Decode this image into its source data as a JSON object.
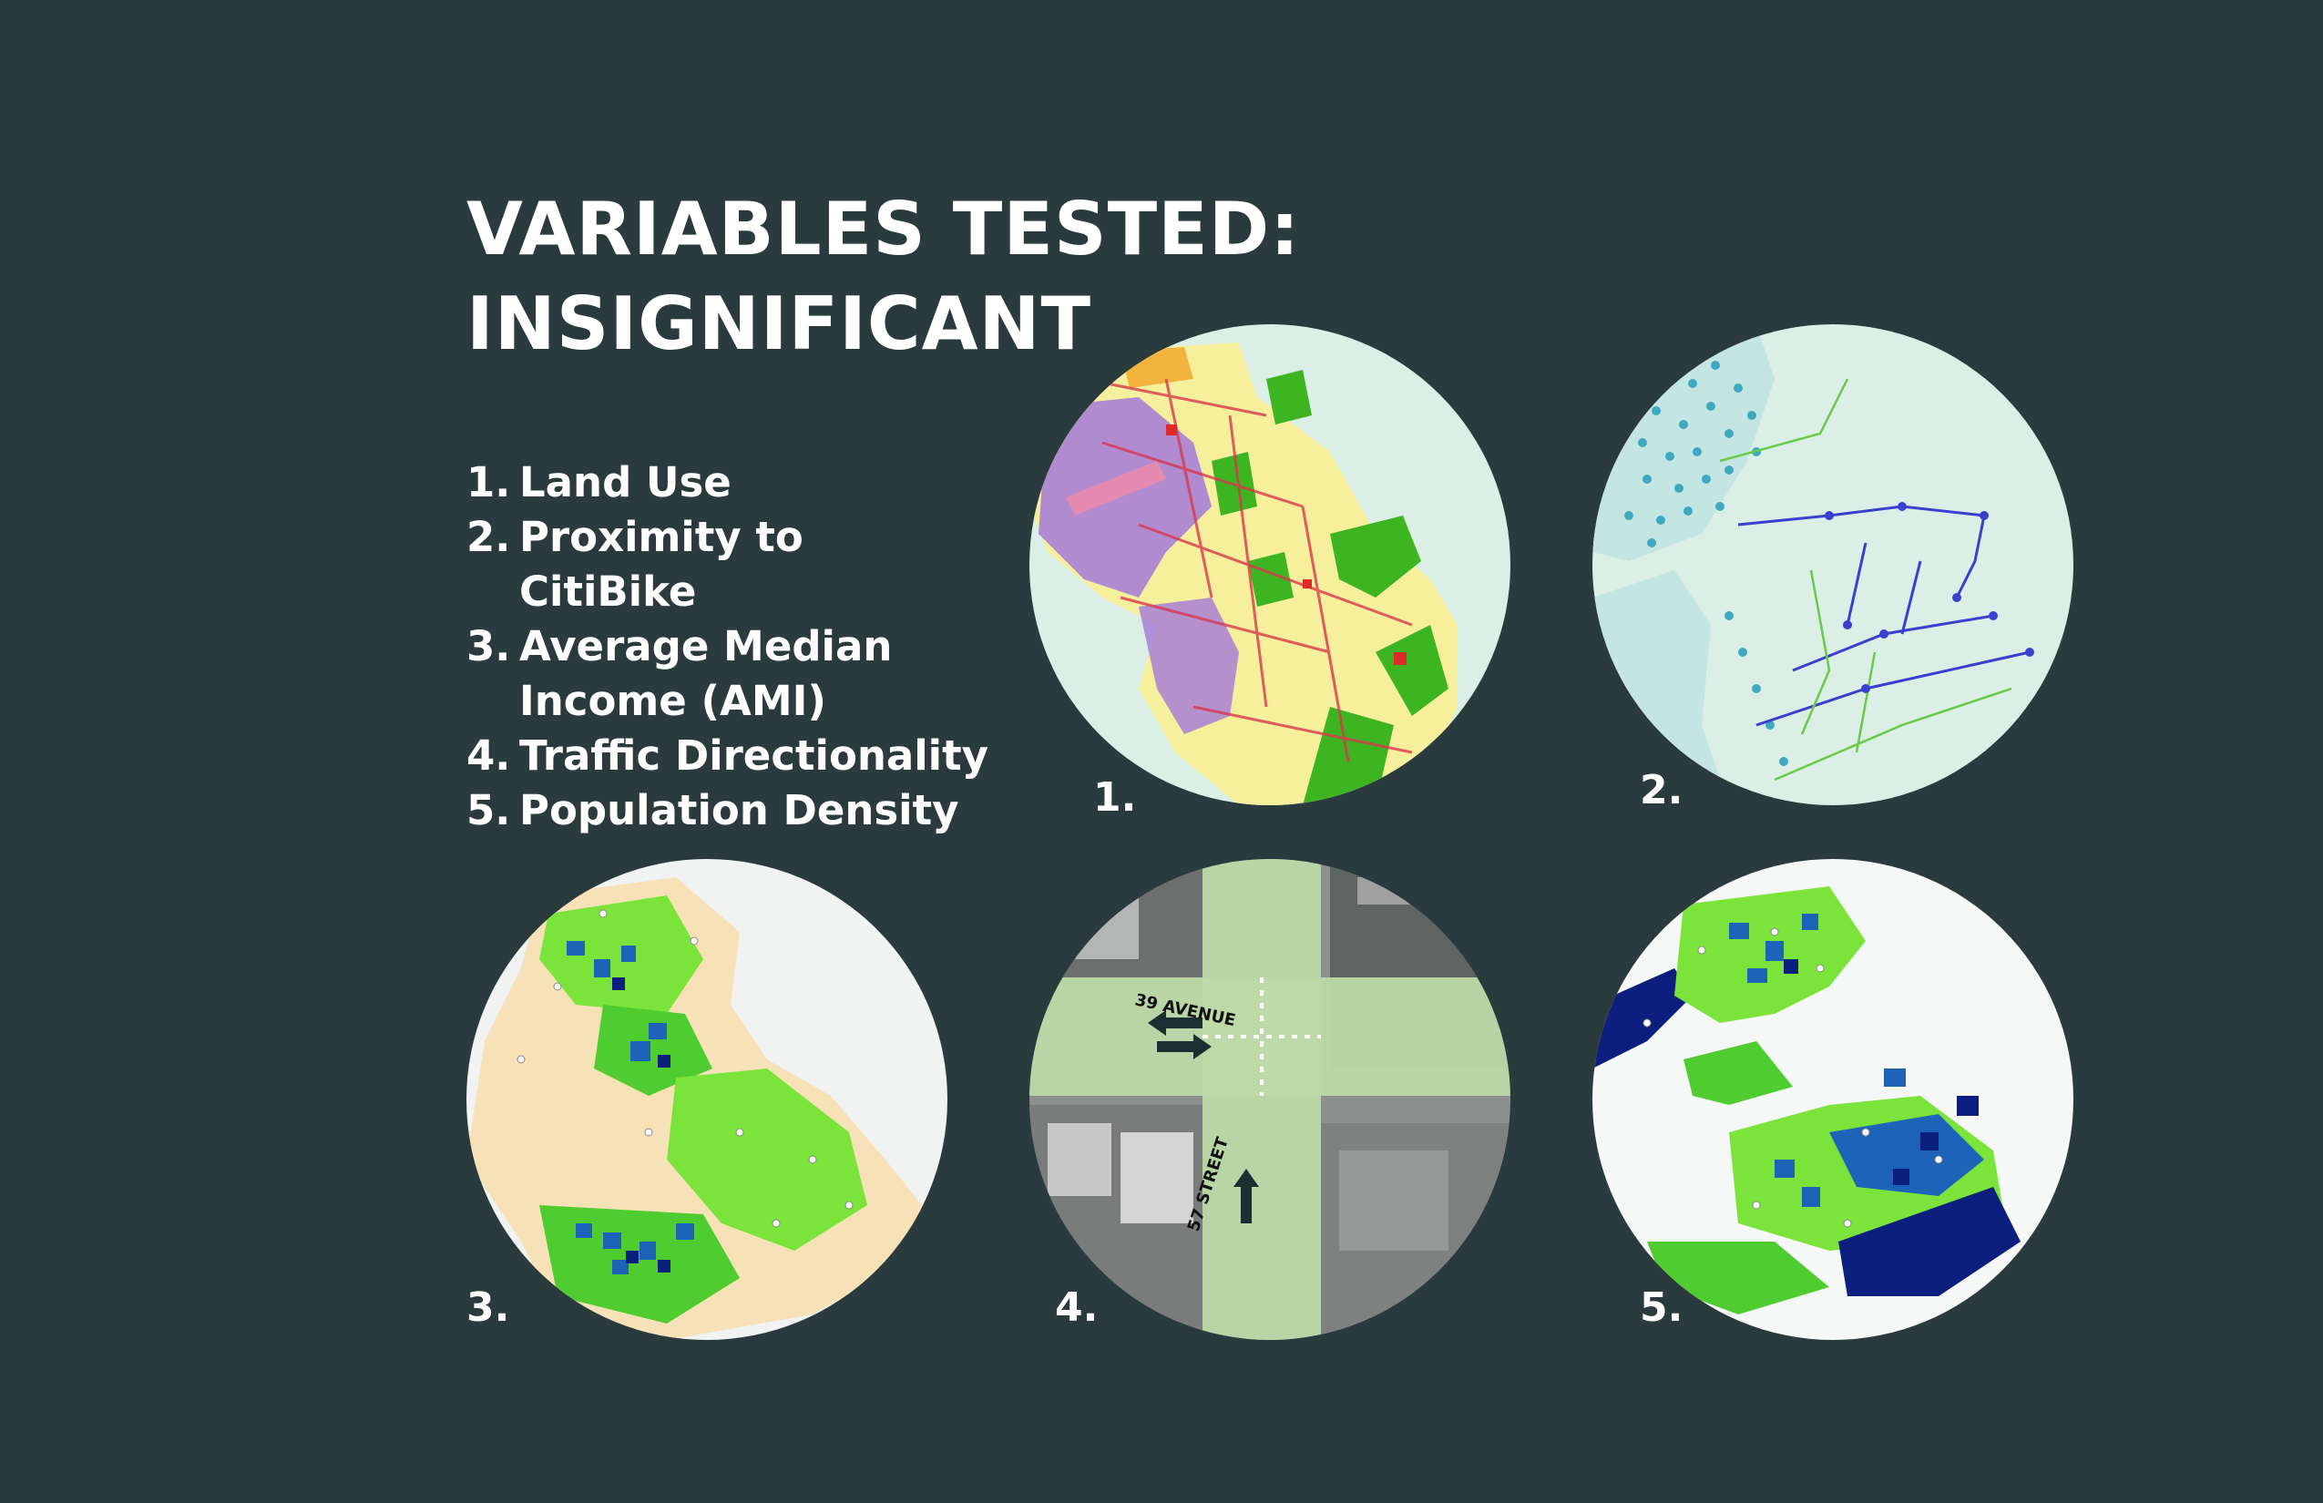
{
  "title": {
    "line1": "VARIABLES TESTED:",
    "line2": "INSIGNIFICANT"
  },
  "variables": [
    {
      "number": "1.",
      "label": "Land Use"
    },
    {
      "number": "2.",
      "label": "Proximity to CitiBike"
    },
    {
      "number": "3.",
      "label": "Average Median Income (AMI)"
    },
    {
      "number": "4.",
      "label": "Traffic Directionality"
    },
    {
      "number": "5.",
      "label": "Population Density"
    }
  ],
  "maps": [
    {
      "caption": "1.",
      "icon": "land-use-map"
    },
    {
      "caption": "2.",
      "icon": "citibike-proximity-map"
    },
    {
      "caption": "3.",
      "icon": "ami-choropleth-map"
    },
    {
      "caption": "4.",
      "icon": "intersection-aerial"
    },
    {
      "caption": "5.",
      "icon": "population-density-map"
    }
  ],
  "intersection": {
    "avenue": "39 AVENUE",
    "street": "57 STREET"
  },
  "colors": {
    "background": "#2b3b3d",
    "map_water": "#dcefe6",
    "land_yellow": "#f6ef9b",
    "land_purple": "#a87fd6",
    "park_green": "#3cb521",
    "citibike_dots": "#3fa9c2",
    "bike_lane_blue": "#3b3fd0",
    "ami_base": "#f7e2b8",
    "density_green": "#7be43a",
    "density_blue": "#1d64b8",
    "density_navy": "#0c1f7e"
  }
}
